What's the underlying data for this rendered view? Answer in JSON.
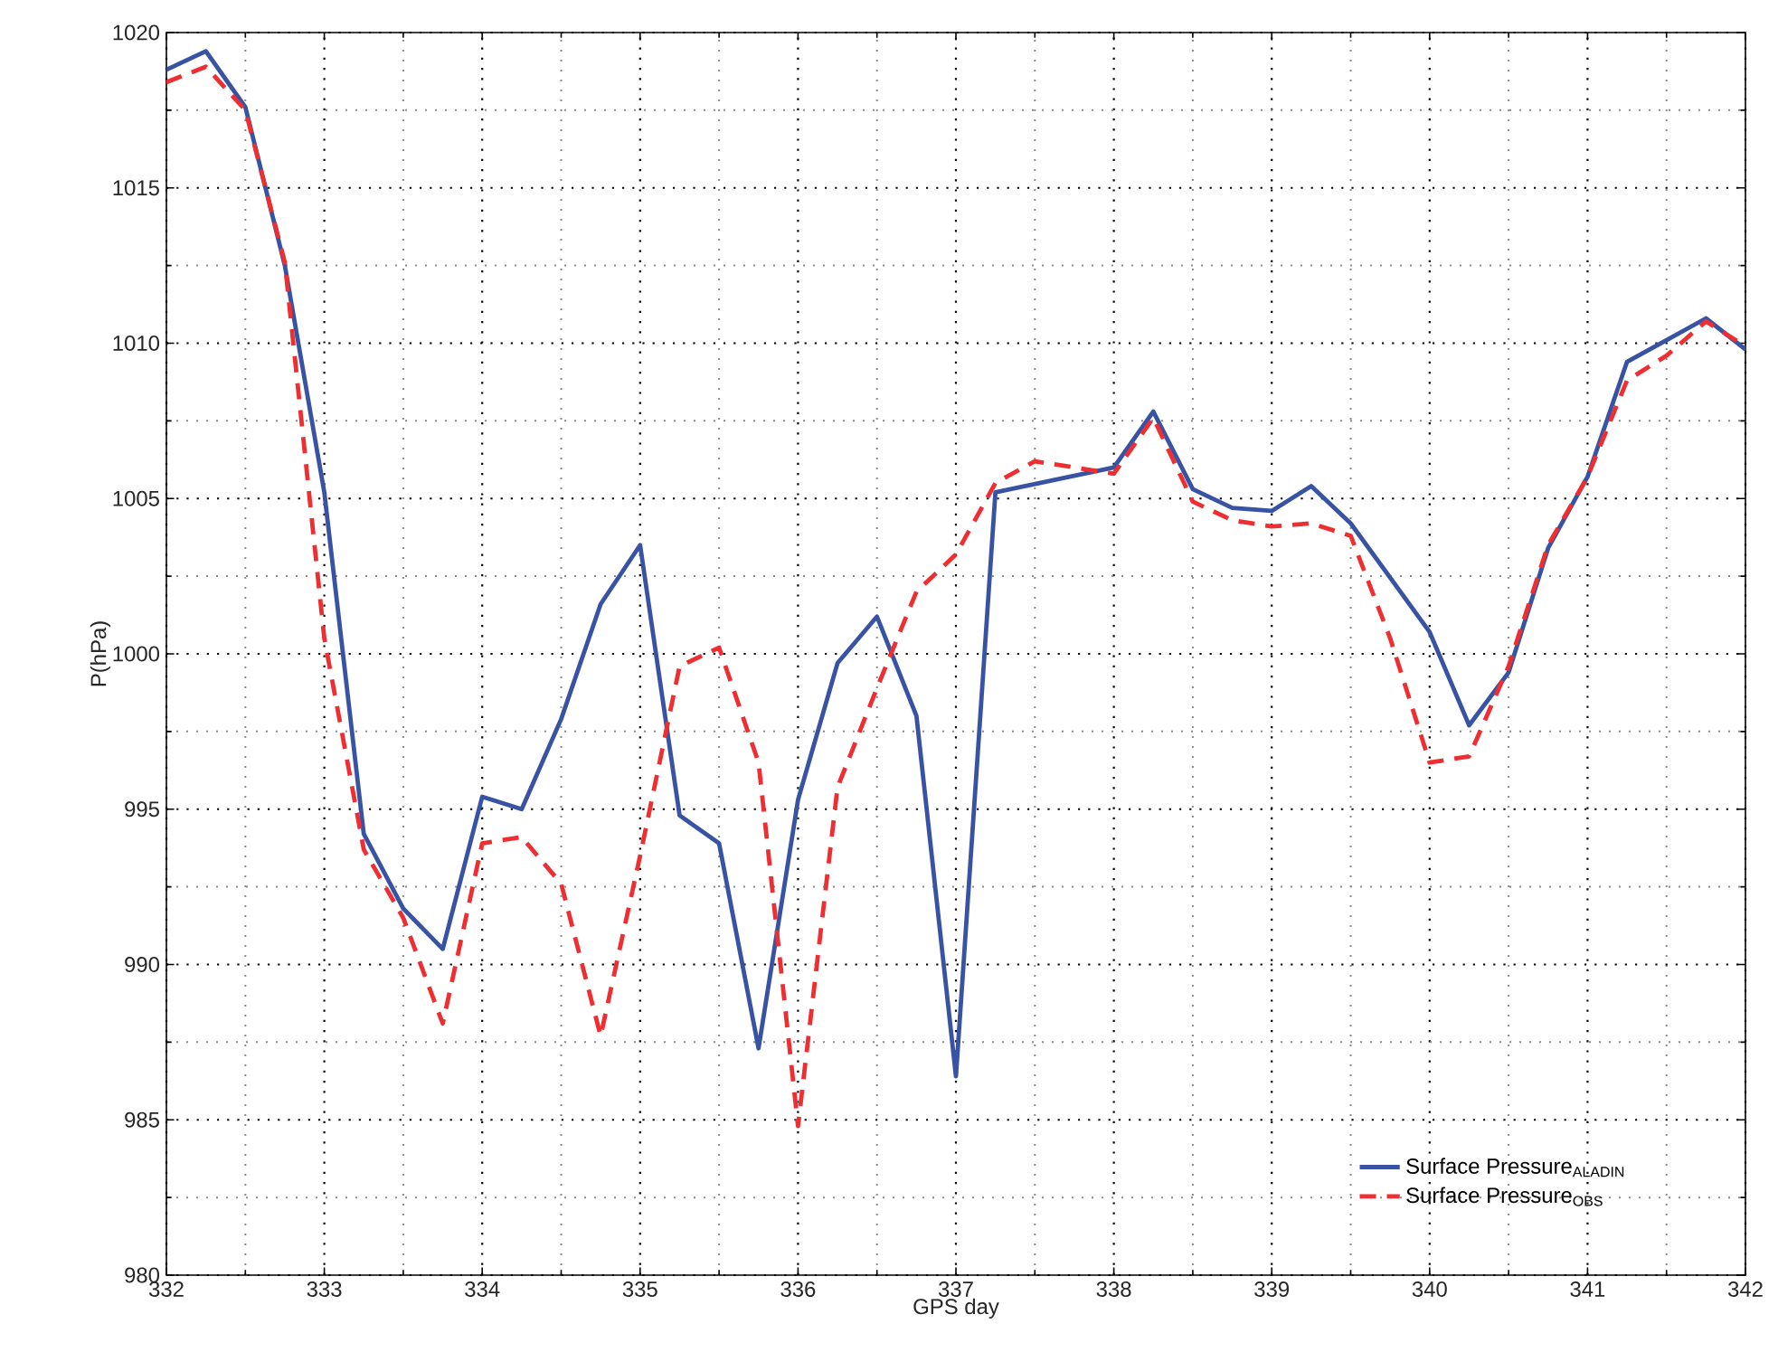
{
  "chart_data": {
    "type": "line",
    "xlabel": "GPS day",
    "ylabel": "P(hPa)",
    "xlim": [
      332,
      342
    ],
    "xticks": [
      332,
      333,
      334,
      335,
      336,
      337,
      338,
      339,
      340,
      341,
      342
    ],
    "ylim": [
      980,
      1020
    ],
    "yticks": [
      980,
      985,
      990,
      995,
      1000,
      1005,
      1010,
      1015,
      1020
    ],
    "grid": true,
    "legend": "bottom right",
    "marker": "none",
    "series": [
      {
        "name": "Surface Pressure$_{ALADIN}$",
        "color": "#3953a4",
        "line_style": "solid",
        "x": [
          332,
          332.25,
          332.5,
          332.75,
          333,
          333.25,
          333.5,
          333.75,
          334,
          334.25,
          334.5,
          334.75,
          335,
          335.25,
          335.5,
          335.75,
          336,
          336.25,
          336.5,
          336.75,
          337,
          337.25,
          338,
          338.25,
          338.5,
          338.75,
          339,
          339.25,
          339.5,
          340,
          340.25,
          340.5,
          340.75,
          341,
          341.25,
          341.5,
          341.75,
          342
        ],
        "values": [
          1018.8,
          1019.4,
          1017.6,
          1012.5,
          1005.2,
          994.2,
          991.8,
          990.5,
          995.4,
          995.0,
          997.9,
          1001.6,
          1003.5,
          994.8,
          993.9,
          987.3,
          995.3,
          999.7,
          1001.2,
          998.0,
          986.4,
          1005.2,
          1006.0,
          1007.8,
          1005.3,
          1004.7,
          1004.6,
          1005.4,
          1004.2,
          1000.7,
          997.7,
          999.4,
          1003.4,
          1005.7,
          1009.4,
          1010.1,
          1010.8,
          1009.8
        ]
      },
      {
        "name": "Surface Pressure$_{OBS}$",
        "color": "#ee2e30",
        "line_style": "dashed",
        "x": [
          332,
          332.25,
          332.5,
          332.75,
          333,
          333.25,
          333.5,
          333.75,
          334,
          334.25,
          334.5,
          334.75,
          335,
          335.25,
          335.5,
          335.75,
          336,
          336.25,
          336.5,
          336.75,
          337,
          337.25,
          337.5,
          337.75,
          338,
          338.25,
          338.5,
          338.75,
          339,
          339.25,
          339.5,
          339.75,
          340,
          340.25,
          340.5,
          340.75,
          341,
          341.25,
          341.5,
          341.75,
          342
        ],
        "values": [
          1018.4,
          1018.9,
          1017.5,
          1012.6,
          1000.5,
          993.7,
          991.5,
          988.1,
          993.9,
          994.1,
          992.6,
          987.7,
          993.5,
          999.6,
          1000.2,
          996.5,
          984.8,
          995.7,
          998.9,
          1002.0,
          1003.2,
          1005.5,
          1006.2,
          1006.0,
          1005.8,
          1007.6,
          1004.9,
          1004.3,
          1004.1,
          1004.2,
          1003.8,
          1000.5,
          996.5,
          996.7,
          999.6,
          1003.5,
          1005.7,
          1008.8,
          1009.6,
          1010.7,
          1009.9
        ]
      }
    ]
  }
}
